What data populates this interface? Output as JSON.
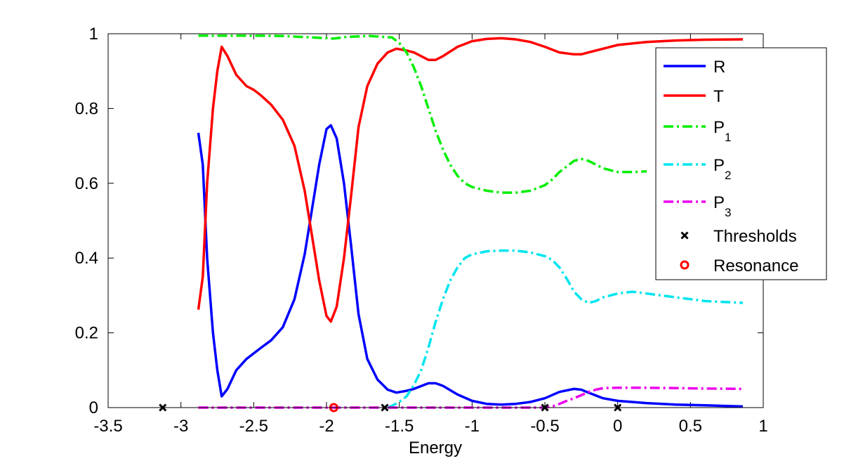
{
  "chart_data": {
    "type": "line",
    "xlabel": "Energy",
    "ylabel": "",
    "xlim": [
      -3.5,
      1
    ],
    "ylim": [
      0,
      1
    ],
    "xticks": [
      "-3.5",
      "-3",
      "-2.5",
      "-2",
      "-1.5",
      "-1",
      "-0.5",
      "0",
      "0.5",
      "1"
    ],
    "yticks": [
      "0",
      "0.2",
      "0.4",
      "0.6",
      "0.8",
      "1"
    ],
    "legend_position": "top-right",
    "series": [
      {
        "name": "R",
        "label_main": "R",
        "label_sub": "",
        "color": "#0000ff",
        "dash": "solid",
        "x": [
          -2.88,
          -2.85,
          -2.82,
          -2.78,
          -2.75,
          -2.72,
          -2.68,
          -2.62,
          -2.55,
          -2.5,
          -2.45,
          -2.38,
          -2.3,
          -2.22,
          -2.15,
          -2.1,
          -2.05,
          -2.0,
          -1.97,
          -1.93,
          -1.88,
          -1.83,
          -1.78,
          -1.72,
          -1.65,
          -1.58,
          -1.52,
          -1.45,
          -1.4,
          -1.3,
          -1.25,
          -1.2,
          -1.1,
          -1.0,
          -0.9,
          -0.8,
          -0.7,
          -0.6,
          -0.5,
          -0.4,
          -0.3,
          -0.25,
          -0.2,
          -0.1,
          0.0,
          0.2,
          0.4,
          0.6,
          0.86
        ],
        "y": [
          0.735,
          0.65,
          0.4,
          0.2,
          0.1,
          0.03,
          0.05,
          0.1,
          0.13,
          0.145,
          0.16,
          0.18,
          0.215,
          0.29,
          0.41,
          0.53,
          0.65,
          0.745,
          0.755,
          0.72,
          0.6,
          0.43,
          0.25,
          0.13,
          0.075,
          0.048,
          0.04,
          0.045,
          0.05,
          0.065,
          0.065,
          0.058,
          0.035,
          0.018,
          0.01,
          0.008,
          0.01,
          0.015,
          0.025,
          0.042,
          0.05,
          0.048,
          0.04,
          0.025,
          0.018,
          0.012,
          0.008,
          0.006,
          0.003
        ]
      },
      {
        "name": "T",
        "label_main": "T",
        "label_sub": "",
        "color": "#ff0000",
        "dash": "solid",
        "x": [
          -2.88,
          -2.85,
          -2.82,
          -2.78,
          -2.75,
          -2.72,
          -2.68,
          -2.62,
          -2.55,
          -2.5,
          -2.45,
          -2.38,
          -2.3,
          -2.22,
          -2.15,
          -2.1,
          -2.05,
          -2.0,
          -1.97,
          -1.93,
          -1.88,
          -1.83,
          -1.78,
          -1.72,
          -1.65,
          -1.58,
          -1.52,
          -1.45,
          -1.4,
          -1.3,
          -1.25,
          -1.2,
          -1.1,
          -1.0,
          -0.9,
          -0.8,
          -0.7,
          -0.6,
          -0.5,
          -0.4,
          -0.3,
          -0.25,
          -0.2,
          -0.1,
          0.0,
          0.2,
          0.4,
          0.6,
          0.86
        ],
        "y": [
          0.262,
          0.35,
          0.6,
          0.8,
          0.9,
          0.965,
          0.94,
          0.89,
          0.86,
          0.85,
          0.835,
          0.81,
          0.77,
          0.7,
          0.58,
          0.46,
          0.34,
          0.245,
          0.23,
          0.27,
          0.4,
          0.57,
          0.75,
          0.86,
          0.92,
          0.95,
          0.96,
          0.955,
          0.95,
          0.93,
          0.93,
          0.94,
          0.965,
          0.98,
          0.986,
          0.988,
          0.985,
          0.978,
          0.965,
          0.95,
          0.945,
          0.945,
          0.95,
          0.96,
          0.97,
          0.978,
          0.982,
          0.984,
          0.985
        ]
      },
      {
        "name": "P1",
        "label_main": "P",
        "label_sub": "1",
        "color": "#00ee00",
        "dash": "dashdot",
        "x": [
          -2.88,
          -2.7,
          -2.5,
          -2.3,
          -2.1,
          -1.95,
          -1.85,
          -1.7,
          -1.55,
          -1.5,
          -1.45,
          -1.4,
          -1.35,
          -1.3,
          -1.25,
          -1.2,
          -1.15,
          -1.1,
          -1.05,
          -1.0,
          -0.9,
          -0.8,
          -0.7,
          -0.6,
          -0.5,
          -0.45,
          -0.4,
          -0.3,
          -0.25,
          -0.2,
          -0.15,
          -0.1,
          0.0,
          0.1,
          0.2
        ],
        "y": [
          0.995,
          0.995,
          0.995,
          0.994,
          0.99,
          0.987,
          0.992,
          0.994,
          0.99,
          0.975,
          0.95,
          0.91,
          0.86,
          0.8,
          0.74,
          0.69,
          0.65,
          0.62,
          0.6,
          0.59,
          0.58,
          0.575,
          0.575,
          0.58,
          0.595,
          0.61,
          0.63,
          0.66,
          0.665,
          0.66,
          0.65,
          0.64,
          0.63,
          0.63,
          0.632
        ]
      },
      {
        "name": "P2",
        "label_main": "P",
        "label_sub": "2",
        "color": "#00e5ee",
        "dash": "dashdot",
        "x": [
          -1.58,
          -1.55,
          -1.5,
          -1.45,
          -1.4,
          -1.35,
          -1.3,
          -1.25,
          -1.2,
          -1.15,
          -1.1,
          -1.05,
          -1.0,
          -0.9,
          -0.8,
          -0.7,
          -0.6,
          -0.5,
          -0.45,
          -0.4,
          -0.35,
          -0.3,
          -0.25,
          -0.2,
          -0.15,
          -0.1,
          0.0,
          0.1,
          0.2,
          0.4,
          0.6,
          0.86
        ],
        "y": [
          0.0,
          0.005,
          0.015,
          0.03,
          0.06,
          0.1,
          0.16,
          0.23,
          0.29,
          0.34,
          0.375,
          0.4,
          0.41,
          0.418,
          0.42,
          0.42,
          0.415,
          0.405,
          0.395,
          0.375,
          0.345,
          0.31,
          0.29,
          0.28,
          0.285,
          0.295,
          0.305,
          0.31,
          0.305,
          0.295,
          0.285,
          0.28
        ]
      },
      {
        "name": "P3",
        "label_main": "P",
        "label_sub": "3",
        "color": "#ee00ee",
        "dash": "dashdot",
        "x": [
          -2.88,
          -2.5,
          -2.0,
          -1.5,
          -1.0,
          -0.5,
          -0.45,
          -0.4,
          -0.35,
          -0.3,
          -0.25,
          -0.2,
          -0.15,
          -0.1,
          0.0,
          0.2,
          0.4,
          0.6,
          0.86
        ],
        "y": [
          0.0,
          0.0,
          0.0,
          0.0,
          0.0,
          0.0,
          0.003,
          0.01,
          0.018,
          0.025,
          0.033,
          0.042,
          0.048,
          0.052,
          0.053,
          0.053,
          0.052,
          0.051,
          0.05
        ]
      }
    ],
    "thresholds": {
      "name": "Thresholds",
      "label": "Thresholds",
      "color": "#000000",
      "x": [
        -3.125,
        -1.6,
        -0.5,
        0.0
      ],
      "y": [
        0,
        0,
        0,
        0
      ]
    },
    "resonance": {
      "name": "Resonance",
      "label": "Resonance",
      "color": "#ff0000",
      "x": [
        -1.95
      ],
      "y": [
        0
      ]
    }
  }
}
